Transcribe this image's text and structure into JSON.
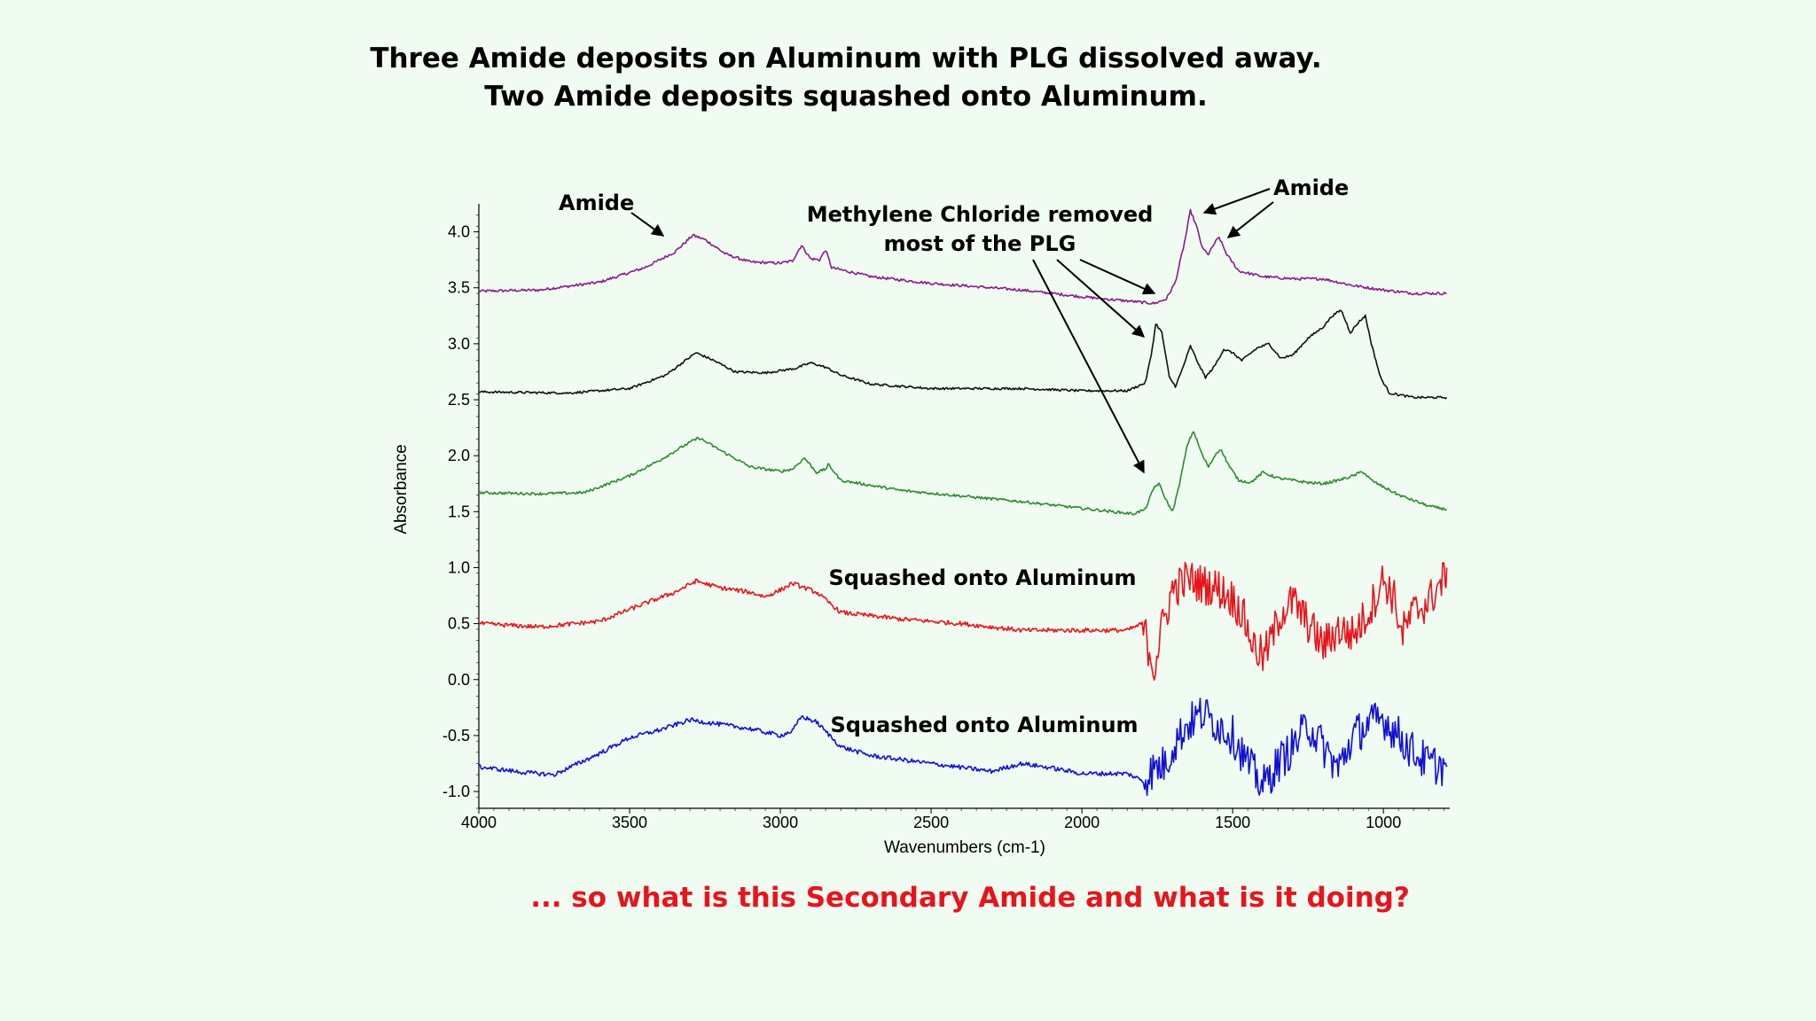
{
  "title_line1": "Three Amide deposits on Aluminum with PLG dissolved away.",
  "title_line2": "Two Amide deposits squashed onto Aluminum.",
  "question": "... so what is this Secondary Amide and what is it doing?",
  "colors": {
    "background": "#f0fbf2",
    "question": "#e8141b"
  },
  "chart_data": {
    "type": "line",
    "xlabel": "Wavenumbers (cm-1)",
    "ylabel": "Absorbance",
    "xlim": [
      4000,
      780
    ],
    "x_reversed": true,
    "ylim": [
      -1.15,
      4.25
    ],
    "xticks": [
      4000,
      3500,
      3000,
      2500,
      2000,
      1500,
      1000
    ],
    "xtick_labels": [
      "4000",
      "3500",
      "3000",
      "2500",
      "2000",
      "1500",
      "1000"
    ],
    "yticks": [
      4.0,
      3.5,
      3.0,
      2.5,
      2.0,
      1.5,
      1.0,
      0.5,
      0.0,
      -0.5,
      -1.0
    ],
    "ytick_labels": [
      "4.0",
      "3.5",
      "3.0",
      "2.5",
      "2.0",
      "1.5",
      "1.0",
      "0.5",
      "0.0",
      "-0.5",
      "-1.0"
    ],
    "grid": false,
    "series": [
      {
        "color": "#8b1a8b",
        "noise": 0.012,
        "points": [
          [
            4000,
            3.47
          ],
          [
            3800,
            3.48
          ],
          [
            3600,
            3.55
          ],
          [
            3450,
            3.68
          ],
          [
            3350,
            3.82
          ],
          [
            3290,
            3.97
          ],
          [
            3250,
            3.93
          ],
          [
            3180,
            3.8
          ],
          [
            3100,
            3.73
          ],
          [
            3000,
            3.72
          ],
          [
            2960,
            3.74
          ],
          [
            2930,
            3.88
          ],
          [
            2900,
            3.76
          ],
          [
            2870,
            3.75
          ],
          [
            2850,
            3.84
          ],
          [
            2830,
            3.68
          ],
          [
            2700,
            3.6
          ],
          [
            2500,
            3.54
          ],
          [
            2200,
            3.48
          ],
          [
            2000,
            3.42
          ],
          [
            1800,
            3.37
          ],
          [
            1760,
            3.36
          ],
          [
            1720,
            3.4
          ],
          [
            1690,
            3.55
          ],
          [
            1660,
            3.9
          ],
          [
            1640,
            4.19
          ],
          [
            1620,
            4.05
          ],
          [
            1600,
            3.85
          ],
          [
            1580,
            3.8
          ],
          [
            1560,
            3.9
          ],
          [
            1545,
            3.95
          ],
          [
            1520,
            3.8
          ],
          [
            1480,
            3.65
          ],
          [
            1400,
            3.6
          ],
          [
            1300,
            3.58
          ],
          [
            1200,
            3.58
          ],
          [
            1100,
            3.52
          ],
          [
            1000,
            3.48
          ],
          [
            900,
            3.45
          ],
          [
            790,
            3.45
          ]
        ]
      },
      {
        "color": "#111111",
        "noise": 0.01,
        "points": [
          [
            4000,
            2.57
          ],
          [
            3700,
            2.56
          ],
          [
            3500,
            2.6
          ],
          [
            3380,
            2.72
          ],
          [
            3280,
            2.92
          ],
          [
            3220,
            2.85
          ],
          [
            3150,
            2.75
          ],
          [
            3050,
            2.74
          ],
          [
            2950,
            2.78
          ],
          [
            2900,
            2.83
          ],
          [
            2850,
            2.79
          ],
          [
            2800,
            2.72
          ],
          [
            2700,
            2.64
          ],
          [
            2500,
            2.6
          ],
          [
            2200,
            2.6
          ],
          [
            2000,
            2.58
          ],
          [
            1850,
            2.58
          ],
          [
            1790,
            2.65
          ],
          [
            1770,
            2.9
          ],
          [
            1755,
            3.18
          ],
          [
            1735,
            3.1
          ],
          [
            1710,
            2.7
          ],
          [
            1690,
            2.62
          ],
          [
            1670,
            2.75
          ],
          [
            1640,
            2.98
          ],
          [
            1610,
            2.8
          ],
          [
            1590,
            2.7
          ],
          [
            1560,
            2.8
          ],
          [
            1530,
            2.95
          ],
          [
            1500,
            2.92
          ],
          [
            1470,
            2.85
          ],
          [
            1420,
            2.96
          ],
          [
            1380,
            3.0
          ],
          [
            1340,
            2.87
          ],
          [
            1300,
            2.9
          ],
          [
            1250,
            3.05
          ],
          [
            1200,
            3.15
          ],
          [
            1170,
            3.25
          ],
          [
            1140,
            3.3
          ],
          [
            1110,
            3.1
          ],
          [
            1080,
            3.2
          ],
          [
            1060,
            3.25
          ],
          [
            1040,
            3.0
          ],
          [
            1010,
            2.7
          ],
          [
            980,
            2.56
          ],
          [
            900,
            2.52
          ],
          [
            790,
            2.52
          ]
        ]
      },
      {
        "color": "#2e8b2e",
        "noise": 0.012,
        "points": [
          [
            4000,
            1.67
          ],
          [
            3800,
            1.66
          ],
          [
            3650,
            1.67
          ],
          [
            3500,
            1.82
          ],
          [
            3400,
            1.96
          ],
          [
            3300,
            2.12
          ],
          [
            3270,
            2.16
          ],
          [
            3200,
            2.05
          ],
          [
            3100,
            1.9
          ],
          [
            3000,
            1.86
          ],
          [
            2960,
            1.88
          ],
          [
            2920,
            1.98
          ],
          [
            2880,
            1.85
          ],
          [
            2850,
            1.88
          ],
          [
            2840,
            1.92
          ],
          [
            2800,
            1.78
          ],
          [
            2600,
            1.69
          ],
          [
            2400,
            1.64
          ],
          [
            2200,
            1.59
          ],
          [
            2000,
            1.53
          ],
          [
            1830,
            1.48
          ],
          [
            1790,
            1.52
          ],
          [
            1760,
            1.72
          ],
          [
            1745,
            1.75
          ],
          [
            1720,
            1.6
          ],
          [
            1700,
            1.5
          ],
          [
            1680,
            1.7
          ],
          [
            1650,
            2.1
          ],
          [
            1630,
            2.22
          ],
          [
            1600,
            2.0
          ],
          [
            1580,
            1.9
          ],
          [
            1555,
            2.02
          ],
          [
            1540,
            2.06
          ],
          [
            1510,
            1.9
          ],
          [
            1480,
            1.78
          ],
          [
            1440,
            1.76
          ],
          [
            1400,
            1.85
          ],
          [
            1350,
            1.8
          ],
          [
            1300,
            1.78
          ],
          [
            1250,
            1.76
          ],
          [
            1200,
            1.75
          ],
          [
            1150,
            1.78
          ],
          [
            1100,
            1.82
          ],
          [
            1070,
            1.86
          ],
          [
            1040,
            1.78
          ],
          [
            1000,
            1.72
          ],
          [
            950,
            1.65
          ],
          [
            900,
            1.6
          ],
          [
            850,
            1.55
          ],
          [
            790,
            1.52
          ]
        ]
      },
      {
        "color": "#e8141b",
        "noise": 0.02,
        "points": [
          [
            4000,
            0.5
          ],
          [
            3800,
            0.47
          ],
          [
            3600,
            0.52
          ],
          [
            3450,
            0.68
          ],
          [
            3350,
            0.78
          ],
          [
            3280,
            0.88
          ],
          [
            3200,
            0.82
          ],
          [
            3100,
            0.78
          ],
          [
            3050,
            0.74
          ],
          [
            3000,
            0.8
          ],
          [
            2960,
            0.86
          ],
          [
            2920,
            0.82
          ],
          [
            2880,
            0.78
          ],
          [
            2800,
            0.6
          ],
          [
            2600,
            0.54
          ],
          [
            2400,
            0.5
          ],
          [
            2200,
            0.44
          ],
          [
            2000,
            0.44
          ],
          [
            1850,
            0.44
          ],
          [
            1800,
            0.5
          ],
          [
            1780,
            0.3
          ],
          [
            1760,
            0.1
          ],
          [
            1740,
            0.4
          ],
          [
            1700,
            0.8
          ],
          [
            1650,
            0.9
          ],
          [
            1600,
            0.85
          ],
          [
            1550,
            0.82
          ],
          [
            1500,
            0.72
          ],
          [
            1470,
            0.6
          ],
          [
            1430,
            0.3
          ],
          [
            1400,
            0.2
          ],
          [
            1380,
            0.3
          ],
          [
            1340,
            0.6
          ],
          [
            1300,
            0.7
          ],
          [
            1250,
            0.5
          ],
          [
            1200,
            0.3
          ],
          [
            1150,
            0.45
          ],
          [
            1100,
            0.4
          ],
          [
            1050,
            0.6
          ],
          [
            1000,
            0.9
          ],
          [
            960,
            0.7
          ],
          [
            940,
            0.4
          ],
          [
            900,
            0.6
          ],
          [
            850,
            0.7
          ],
          [
            800,
            0.9
          ],
          [
            790,
            1.0
          ]
        ]
      },
      {
        "color": "#1010d8",
        "noise": 0.02,
        "points": [
          [
            4000,
            -0.78
          ],
          [
            3850,
            -0.83
          ],
          [
            3750,
            -0.85
          ],
          [
            3600,
            -0.66
          ],
          [
            3500,
            -0.52
          ],
          [
            3400,
            -0.45
          ],
          [
            3300,
            -0.36
          ],
          [
            3200,
            -0.4
          ],
          [
            3100,
            -0.44
          ],
          [
            3000,
            -0.5
          ],
          [
            2960,
            -0.46
          ],
          [
            2930,
            -0.33
          ],
          [
            2880,
            -0.38
          ],
          [
            2800,
            -0.6
          ],
          [
            2700,
            -0.68
          ],
          [
            2500,
            -0.75
          ],
          [
            2300,
            -0.82
          ],
          [
            2200,
            -0.75
          ],
          [
            2100,
            -0.79
          ],
          [
            2000,
            -0.84
          ],
          [
            1850,
            -0.84
          ],
          [
            1800,
            -0.9
          ],
          [
            1760,
            -0.8
          ],
          [
            1720,
            -0.75
          ],
          [
            1700,
            -0.6
          ],
          [
            1650,
            -0.4
          ],
          [
            1600,
            -0.3
          ],
          [
            1550,
            -0.4
          ],
          [
            1500,
            -0.5
          ],
          [
            1450,
            -0.75
          ],
          [
            1400,
            -0.95
          ],
          [
            1350,
            -0.75
          ],
          [
            1300,
            -0.6
          ],
          [
            1250,
            -0.4
          ],
          [
            1200,
            -0.6
          ],
          [
            1150,
            -0.8
          ],
          [
            1100,
            -0.5
          ],
          [
            1050,
            -0.4
          ],
          [
            1000,
            -0.35
          ],
          [
            950,
            -0.5
          ],
          [
            900,
            -0.65
          ],
          [
            850,
            -0.75
          ],
          [
            790,
            -0.78
          ]
        ]
      }
    ],
    "annotations": [
      {
        "text": "Amide"
      },
      {
        "text": "Methylene Chloride removed"
      },
      {
        "text": "most of the PLG"
      },
      {
        "text": "Amide"
      },
      {
        "text": "Squashed onto Aluminum"
      },
      {
        "text": "Squashed onto Aluminum"
      }
    ]
  }
}
